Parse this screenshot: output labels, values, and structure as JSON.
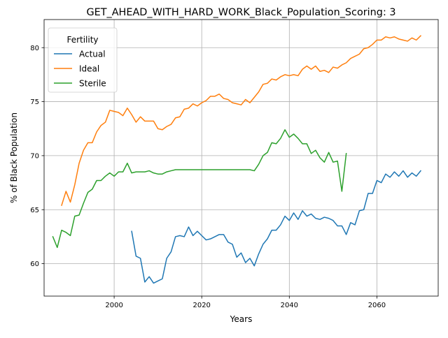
{
  "chart_data": {
    "type": "line",
    "title": "GET_AHEAD_WITH_HARD_WORK_Black_Population_Scoring: 3",
    "xlabel": "Years",
    "ylabel": "% of Black Population",
    "xlim": [
      1984,
      2074
    ],
    "ylim": [
      57.0,
      82.6
    ],
    "xticks": [
      2000,
      2020,
      2040,
      2060
    ],
    "yticks": [
      60,
      65,
      70,
      75,
      80
    ],
    "grid": true,
    "legend": {
      "title": "Fertility",
      "placement": "top-left"
    },
    "series": [
      {
        "name": "Actual",
        "color": "#1f77b4",
        "x": [
          2004,
          2005,
          2006,
          2007,
          2008,
          2009,
          2010,
          2011,
          2012,
          2013,
          2014,
          2015,
          2016,
          2017,
          2018,
          2019,
          2020,
          2021,
          2022,
          2023,
          2024,
          2025,
          2026,
          2027,
          2028,
          2029,
          2030,
          2031,
          2032,
          2033,
          2034,
          2035,
          2036,
          2037,
          2038,
          2039,
          2040,
          2041,
          2042,
          2043,
          2044,
          2045,
          2046,
          2047,
          2048,
          2049,
          2050,
          2051,
          2052,
          2053,
          2054,
          2055,
          2056,
          2057,
          2058,
          2059,
          2060,
          2061,
          2062,
          2063,
          2064,
          2065,
          2066,
          2067,
          2068,
          2069,
          2070
        ],
        "y": [
          63.0,
          60.7,
          60.5,
          58.3,
          58.8,
          58.2,
          58.4,
          58.6,
          60.5,
          61.1,
          62.5,
          62.6,
          62.5,
          63.4,
          62.6,
          63.0,
          62.6,
          62.2,
          62.3,
          62.5,
          62.7,
          62.7,
          62.0,
          61.8,
          60.6,
          61.0,
          60.1,
          60.5,
          59.8,
          60.9,
          61.8,
          62.3,
          63.1,
          63.1,
          63.6,
          64.4,
          64.0,
          64.7,
          64.1,
          64.9,
          64.4,
          64.6,
          64.2,
          64.1,
          64.3,
          64.2,
          64.0,
          63.5,
          63.5,
          62.7,
          63.8,
          63.6,
          64.9,
          65.0,
          66.5,
          66.5,
          67.7,
          67.5,
          68.3,
          68.0,
          68.5,
          68.1,
          68.6,
          68.0,
          68.4,
          68.1,
          68.6
        ]
      },
      {
        "name": "Ideal",
        "color": "#ff7f0e",
        "x": [
          1988,
          1989,
          1990,
          1991,
          1992,
          1993,
          1994,
          1995,
          1996,
          1997,
          1998,
          1999,
          2000,
          2001,
          2002,
          2003,
          2004,
          2005,
          2006,
          2007,
          2008,
          2009,
          2010,
          2011,
          2012,
          2013,
          2014,
          2015,
          2016,
          2017,
          2018,
          2019,
          2020,
          2021,
          2022,
          2023,
          2024,
          2025,
          2026,
          2027,
          2028,
          2029,
          2030,
          2031,
          2032,
          2033,
          2034,
          2035,
          2036,
          2037,
          2038,
          2039,
          2040,
          2041,
          2042,
          2043,
          2044,
          2045,
          2046,
          2047,
          2048,
          2049,
          2050,
          2051,
          2052,
          2053,
          2054,
          2055,
          2056,
          2057,
          2058,
          2059,
          2060,
          2061,
          2062,
          2063,
          2064,
          2065,
          2066,
          2067,
          2068,
          2069,
          2070
        ],
        "y": [
          65.4,
          66.7,
          65.7,
          67.3,
          69.3,
          70.5,
          71.2,
          71.2,
          72.2,
          72.8,
          73.1,
          74.2,
          74.1,
          74.0,
          73.7,
          74.4,
          73.8,
          73.1,
          73.6,
          73.2,
          73.2,
          73.2,
          72.5,
          72.4,
          72.7,
          72.9,
          73.5,
          73.6,
          74.3,
          74.4,
          74.8,
          74.6,
          74.9,
          75.1,
          75.5,
          75.5,
          75.7,
          75.3,
          75.2,
          74.9,
          74.8,
          74.7,
          75.2,
          74.9,
          75.4,
          75.9,
          76.6,
          76.7,
          77.1,
          77.0,
          77.3,
          77.5,
          77.4,
          77.5,
          77.4,
          78.0,
          78.3,
          78.0,
          78.3,
          77.8,
          77.9,
          77.7,
          78.2,
          78.1,
          78.4,
          78.6,
          79.0,
          79.2,
          79.4,
          79.9,
          80.0,
          80.3,
          80.7,
          80.7,
          81.0,
          80.9,
          81.0,
          80.8,
          80.7,
          80.6,
          80.9,
          80.7,
          81.1
        ]
      },
      {
        "name": "Sterile",
        "color": "#2ca02c",
        "x": [
          1986,
          1987,
          1988,
          1989,
          1990,
          1991,
          1992,
          1993,
          1994,
          1995,
          1996,
          1997,
          1998,
          1999,
          2000,
          2001,
          2002,
          2003,
          2004,
          2005,
          2006,
          2007,
          2008,
          2009,
          2010,
          2011,
          2012,
          2013,
          2014,
          2015,
          2016,
          2017,
          2018,
          2019,
          2020,
          2021,
          2022,
          2023,
          2024,
          2025,
          2026,
          2027,
          2028,
          2029,
          2030,
          2031,
          2032,
          2033,
          2034,
          2035,
          2036,
          2037,
          2038,
          2039,
          2040,
          2041,
          2042,
          2043,
          2044,
          2045,
          2046,
          2047,
          2048,
          2049,
          2050,
          2051,
          2052,
          2053
        ],
        "y": [
          62.5,
          61.5,
          63.1,
          62.9,
          62.6,
          64.4,
          64.5,
          65.6,
          66.6,
          66.9,
          67.7,
          67.7,
          68.1,
          68.4,
          68.1,
          68.5,
          68.5,
          69.3,
          68.4,
          68.5,
          68.5,
          68.5,
          68.6,
          68.4,
          68.3,
          68.3,
          68.5,
          68.6,
          68.7,
          68.7,
          68.7,
          68.7,
          68.7,
          68.7,
          68.7,
          68.7,
          68.7,
          68.7,
          68.7,
          68.7,
          68.7,
          68.7,
          68.7,
          68.7,
          68.7,
          68.7,
          68.6,
          69.2,
          70.0,
          70.3,
          71.2,
          71.1,
          71.6,
          72.4,
          71.7,
          72.0,
          71.6,
          71.1,
          71.1,
          70.2,
          70.5,
          69.8,
          69.4,
          70.3,
          69.4,
          69.5,
          66.7,
          70.2
        ]
      }
    ]
  }
}
